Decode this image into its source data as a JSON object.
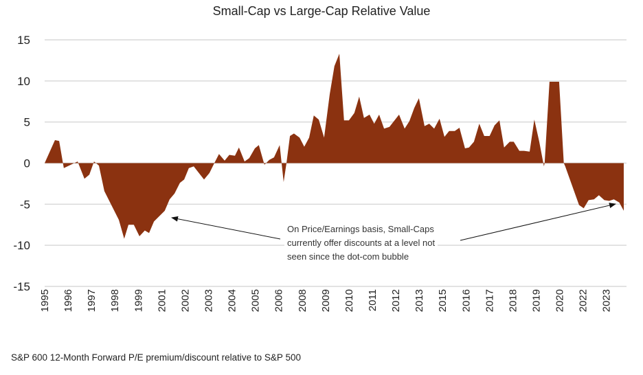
{
  "chart_data": {
    "type": "area",
    "title": "Small-Cap vs Large-Cap Relative Value",
    "footnote": "S&P 600 12-Month Forward P/E premium/discount relative to S&P 500",
    "annotation": "On  Price/Earnings basis, Small-Caps currently offer discounts at a level not seen since the dot-com bubble",
    "annotation_lines": [
      "On  Price/Earnings basis, Small-Caps",
      "currently offer discounts at a level not",
      "seen since the dot-com bubble"
    ],
    "fill_color": "#8B3210",
    "grid": true,
    "ylim": [
      -15,
      15
    ],
    "y_ticks": [
      15,
      10,
      5,
      0,
      -5,
      -10,
      -15
    ],
    "x_tick_labels": [
      "1995",
      "1996",
      "1997",
      "1998",
      "1999",
      "2001",
      "2002",
      "2003",
      "2004",
      "2005",
      "2006",
      "2008",
      "2009",
      "2010",
      "2011",
      "2012",
      "2013",
      "2015",
      "2016",
      "2017",
      "2018",
      "2019",
      "2020",
      "2022",
      "2023"
    ],
    "xlim": [
      0,
      24.8
    ],
    "points": [
      [
        0,
        0
      ],
      [
        0.44,
        2.8
      ],
      [
        0.62,
        2.7
      ],
      [
        0.82,
        -0.6
      ],
      [
        1.41,
        0.2
      ],
      [
        1.7,
        -1.9
      ],
      [
        1.91,
        -1.4
      ],
      [
        2.11,
        0.2
      ],
      [
        2.32,
        -0.3
      ],
      [
        2.55,
        -3.4
      ],
      [
        3.17,
        -6.9
      ],
      [
        3.4,
        -9.2
      ],
      [
        3.58,
        -7.5
      ],
      [
        3.81,
        -7.5
      ],
      [
        4.05,
        -8.9
      ],
      [
        4.28,
        -8.2
      ],
      [
        4.46,
        -8.5
      ],
      [
        4.67,
        -7.1
      ],
      [
        5.13,
        -5.8
      ],
      [
        5.34,
        -4.4
      ],
      [
        5.55,
        -3.7
      ],
      [
        5.78,
        -2.4
      ],
      [
        5.96,
        -2.0
      ],
      [
        6.16,
        -0.6
      ],
      [
        6.37,
        -0.4
      ],
      [
        6.81,
        -2.0
      ],
      [
        7.04,
        -1.2
      ],
      [
        7.25,
        0
      ],
      [
        7.45,
        1.1
      ],
      [
        7.69,
        0.3
      ],
      [
        7.89,
        1.0
      ],
      [
        8.13,
        0.9
      ],
      [
        8.3,
        1.9
      ],
      [
        8.54,
        0.2
      ],
      [
        8.74,
        0.6
      ],
      [
        8.98,
        1.8
      ],
      [
        9.15,
        2.2
      ],
      [
        9.39,
        -0.2
      ],
      [
        9.6,
        0.4
      ],
      [
        9.8,
        0.7
      ],
      [
        10.04,
        2.2
      ],
      [
        10.21,
        -2.3
      ],
      [
        10.33,
        0
      ],
      [
        10.48,
        3.3
      ],
      [
        10.65,
        3.6
      ],
      [
        10.89,
        3.1
      ],
      [
        11.09,
        2.0
      ],
      [
        11.3,
        3.1
      ],
      [
        11.5,
        5.8
      ],
      [
        11.71,
        5.3
      ],
      [
        11.94,
        3.1
      ],
      [
        12.18,
        8.4
      ],
      [
        12.38,
        11.8
      ],
      [
        12.59,
        13.3
      ],
      [
        12.79,
        5.2
      ],
      [
        13.0,
        5.2
      ],
      [
        13.23,
        6.1
      ],
      [
        13.44,
        8.1
      ],
      [
        13.64,
        5.5
      ],
      [
        13.88,
        5.9
      ],
      [
        14.08,
        4.8
      ],
      [
        14.29,
        5.9
      ],
      [
        14.5,
        4.2
      ],
      [
        14.73,
        4.4
      ],
      [
        15.14,
        5.9
      ],
      [
        15.38,
        4.2
      ],
      [
        15.58,
        5.1
      ],
      [
        15.79,
        6.7
      ],
      [
        15.99,
        7.9
      ],
      [
        16.23,
        4.5
      ],
      [
        16.43,
        4.8
      ],
      [
        16.64,
        4.2
      ],
      [
        16.87,
        5.4
      ],
      [
        17.08,
        3.2
      ],
      [
        17.28,
        3.9
      ],
      [
        17.52,
        3.9
      ],
      [
        17.72,
        4.3
      ],
      [
        17.96,
        1.8
      ],
      [
        18.13,
        1.9
      ],
      [
        18.34,
        2.6
      ],
      [
        18.57,
        4.8
      ],
      [
        18.78,
        3.3
      ],
      [
        19.01,
        3.3
      ],
      [
        19.22,
        4.6
      ],
      [
        19.43,
        5.2
      ],
      [
        19.63,
        1.9
      ],
      [
        19.87,
        2.6
      ],
      [
        20.04,
        2.6
      ],
      [
        20.28,
        1.5
      ],
      [
        20.48,
        1.5
      ],
      [
        20.72,
        1.4
      ],
      [
        20.92,
        5.3
      ],
      [
        21.13,
        2.6
      ],
      [
        21.33,
        -0.4
      ],
      [
        21.36,
        0
      ],
      [
        21.57,
        9.9
      ],
      [
        21.98,
        9.9
      ],
      [
        22.18,
        0
      ],
      [
        22.24,
        -0.4
      ],
      [
        22.83,
        -5.1
      ],
      [
        23.03,
        -5.5
      ],
      [
        23.24,
        -4.5
      ],
      [
        23.47,
        -4.4
      ],
      [
        23.68,
        -3.9
      ],
      [
        23.91,
        -4.5
      ],
      [
        24.12,
        -4.6
      ],
      [
        24.32,
        -4.4
      ],
      [
        24.55,
        -4.8
      ],
      [
        24.74,
        -5.8
      ]
    ]
  }
}
